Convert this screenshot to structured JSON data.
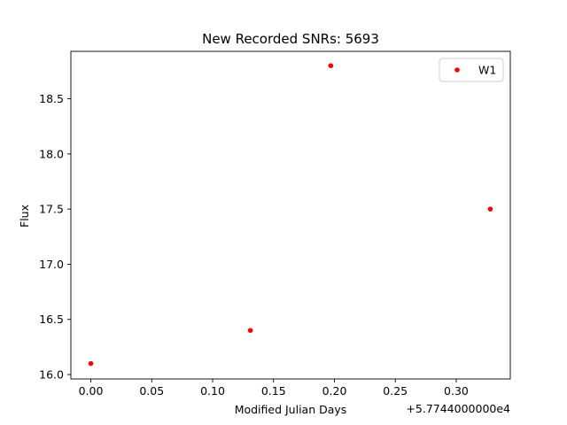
{
  "chart_data": {
    "type": "scatter",
    "title": "New Recorded SNRs: 5693",
    "xlabel": "Modified Julian Days",
    "ylabel": "Flux",
    "x_offset_label": "+5.7744000000e4",
    "xlim": [
      -0.0164,
      0.3444
    ],
    "ylim": [
      15.96,
      18.93
    ],
    "x_ticks": [
      0.0,
      0.05,
      0.1,
      0.15,
      0.2,
      0.25,
      0.3
    ],
    "x_tick_labels": [
      "0.00",
      "0.05",
      "0.10",
      "0.15",
      "0.20",
      "0.25",
      "0.30"
    ],
    "y_ticks": [
      16.0,
      16.5,
      17.0,
      17.5,
      18.0,
      18.5
    ],
    "y_tick_labels": [
      "16.0",
      "16.5",
      "17.0",
      "17.5",
      "18.0",
      "18.5"
    ],
    "grid": false,
    "legend_position": "top-right",
    "series": [
      {
        "name": "W1",
        "color": "#ff0000",
        "x": [
          0.0,
          0.131,
          0.197,
          0.328
        ],
        "y": [
          16.1,
          16.4,
          18.8,
          17.5
        ]
      }
    ]
  }
}
